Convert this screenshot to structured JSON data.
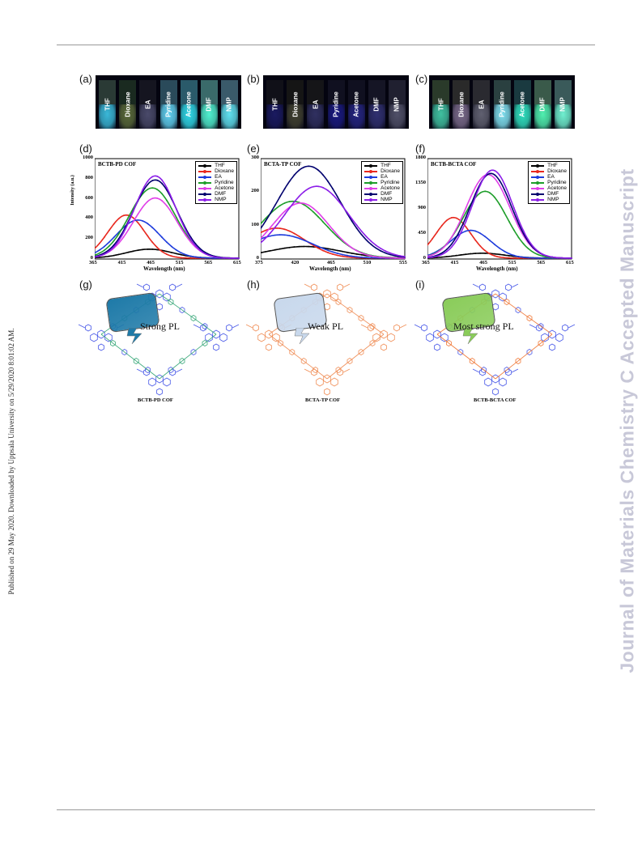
{
  "sidebar_text": "Published on 29 May 2020. Downloaded by Uppsala University on 5/29/2020 8:01:02 AM.",
  "watermark": "Journal of Materials Chemistry C Accepted Manuscript",
  "panel_labels": [
    "(a)",
    "(b)",
    "(c)",
    "(d)",
    "(e)",
    "(f)",
    "(g)",
    "(h)",
    "(i)"
  ],
  "solvents": [
    "THF",
    "Dioxane",
    "EA",
    "Pyridine",
    "Acetone",
    "DMF",
    "NMP"
  ],
  "series_colors": [
    "#000000",
    "#e8281e",
    "#1e3cdc",
    "#1e9e2a",
    "#e040e8",
    "#00006e",
    "#8c1ee8"
  ],
  "photos": [
    {
      "glass": [
        "#2a3a35",
        "#1a2a20",
        "#151520",
        "#2a4a5a",
        "#2a5a6a",
        "#3a6a6a",
        "#3a5a6a"
      ],
      "liquid": [
        "#3ab8d8",
        "#5a6a3a",
        "#4a4a6a",
        "#60d0f0",
        "#30d8e8",
        "#50f0d0",
        "#60e0f0"
      ]
    },
    {
      "glass": [
        "#101018",
        "#151515",
        "#151518",
        "#101020",
        "#101020",
        "#151525",
        "#202030"
      ],
      "liquid": [
        "#1a1a60",
        "#404030",
        "#303060",
        "#1a1a80",
        "#252580",
        "#303070",
        "#505068"
      ]
    },
    {
      "glass": [
        "#2a3a2a",
        "#2a2a2a",
        "#2a2a30",
        "#2a4040",
        "#1a3a40",
        "#3a5a4a",
        "#3a5a5a"
      ],
      "liquid": [
        "#40c0a0",
        "#7a6a8a",
        "#606070",
        "#80e0f0",
        "#30e0c0",
        "#50f0b0",
        "#70f0d0"
      ]
    }
  ],
  "charts": [
    {
      "title": "BCTB-PD COF",
      "ylabel": "Intensity (a.u.)",
      "xlabel": "Wavelength (nm)",
      "yticks": [
        "0",
        "200",
        "400",
        "600",
        "800",
        "1000"
      ],
      "xticks": [
        "365",
        "415",
        "465",
        "515",
        "565",
        "615"
      ]
    },
    {
      "title": "BCTA-TP COF",
      "ylabel": "",
      "xlabel": "Wavelength (nm)",
      "yticks": [
        "0",
        "100",
        "200",
        "300"
      ],
      "xticks": [
        "375",
        "420",
        "465",
        "510",
        "555"
      ]
    },
    {
      "title": "BCTB-BCTA COF",
      "ylabel": "",
      "xlabel": "Wavelength (nm)",
      "yticks": [
        "0",
        "450",
        "900",
        "1350",
        "1800"
      ],
      "xticks": [
        "365",
        "415",
        "465",
        "515",
        "565",
        "615"
      ]
    }
  ],
  "chart_data": [
    {
      "type": "line",
      "title": "BCTB-PD COF",
      "xlabel": "Wavelength (nm)",
      "ylabel": "Intensity (a.u.)",
      "xlim": [
        365,
        615
      ],
      "ylim": [
        0,
        1000
      ],
      "series": [
        {
          "name": "THF",
          "peak_x": 460,
          "peak_y": 90,
          "width": 40
        },
        {
          "name": "Dioxane",
          "peak_x": 420,
          "peak_y": 430,
          "width": 32
        },
        {
          "name": "EA",
          "peak_x": 440,
          "peak_y": 380,
          "width": 38
        },
        {
          "name": "Pyridine",
          "peak_x": 465,
          "peak_y": 700,
          "width": 40
        },
        {
          "name": "Acetone",
          "peak_x": 470,
          "peak_y": 600,
          "width": 38
        },
        {
          "name": "DMF",
          "peak_x": 470,
          "peak_y": 780,
          "width": 38
        },
        {
          "name": "NMP",
          "peak_x": 470,
          "peak_y": 820,
          "width": 36
        }
      ]
    },
    {
      "type": "line",
      "title": "BCTA-TP COF",
      "xlabel": "Wavelength (nm)",
      "xlim": [
        375,
        555
      ],
      "ylim": [
        0,
        300
      ],
      "series": [
        {
          "name": "THF",
          "peak_x": 430,
          "peak_y": 35,
          "width": 45
        },
        {
          "name": "Dioxane",
          "peak_x": 395,
          "peak_y": 90,
          "width": 35
        },
        {
          "name": "EA",
          "peak_x": 400,
          "peak_y": 70,
          "width": 40
        },
        {
          "name": "Pyridine",
          "peak_x": 415,
          "peak_y": 170,
          "width": 40
        },
        {
          "name": "Acetone",
          "peak_x": 425,
          "peak_y": 165,
          "width": 35
        },
        {
          "name": "DMF",
          "peak_x": 435,
          "peak_y": 275,
          "width": 40
        },
        {
          "name": "NMP",
          "peak_x": 445,
          "peak_y": 215,
          "width": 40
        }
      ]
    },
    {
      "type": "line",
      "title": "BCTB-BCTA COF",
      "xlabel": "Wavelength (nm)",
      "xlim": [
        365,
        615
      ],
      "ylim": [
        0,
        1800
      ],
      "series": [
        {
          "name": "THF",
          "peak_x": 460,
          "peak_y": 90,
          "width": 40
        },
        {
          "name": "Dioxane",
          "peak_x": 410,
          "peak_y": 730,
          "width": 30
        },
        {
          "name": "EA",
          "peak_x": 440,
          "peak_y": 500,
          "width": 35
        },
        {
          "name": "Pyridine",
          "peak_x": 465,
          "peak_y": 1200,
          "width": 38
        },
        {
          "name": "Acetone",
          "peak_x": 470,
          "peak_y": 1500,
          "width": 38
        },
        {
          "name": "DMF",
          "peak_x": 475,
          "peak_y": 1520,
          "width": 36
        },
        {
          "name": "NMP",
          "peak_x": 478,
          "peak_y": 1580,
          "width": 35
        }
      ]
    }
  ],
  "structures": [
    {
      "text": "Strong PL",
      "name": "BCTB-PD COF",
      "color": "#4a5ae8",
      "linker": "#3aa87a",
      "bubble": "#1e7aa8"
    },
    {
      "text": "Weak PL",
      "name": "BCTA-TP COF",
      "color": "#f0905a",
      "linker": "#f0905a",
      "bubble": "#c8d8ec"
    },
    {
      "text": "Most strong PL",
      "name": "BCTB-BCTA COF",
      "color": "#4a5ae8",
      "linker": "#f07a3a",
      "bubble": "#8acc5a"
    }
  ]
}
